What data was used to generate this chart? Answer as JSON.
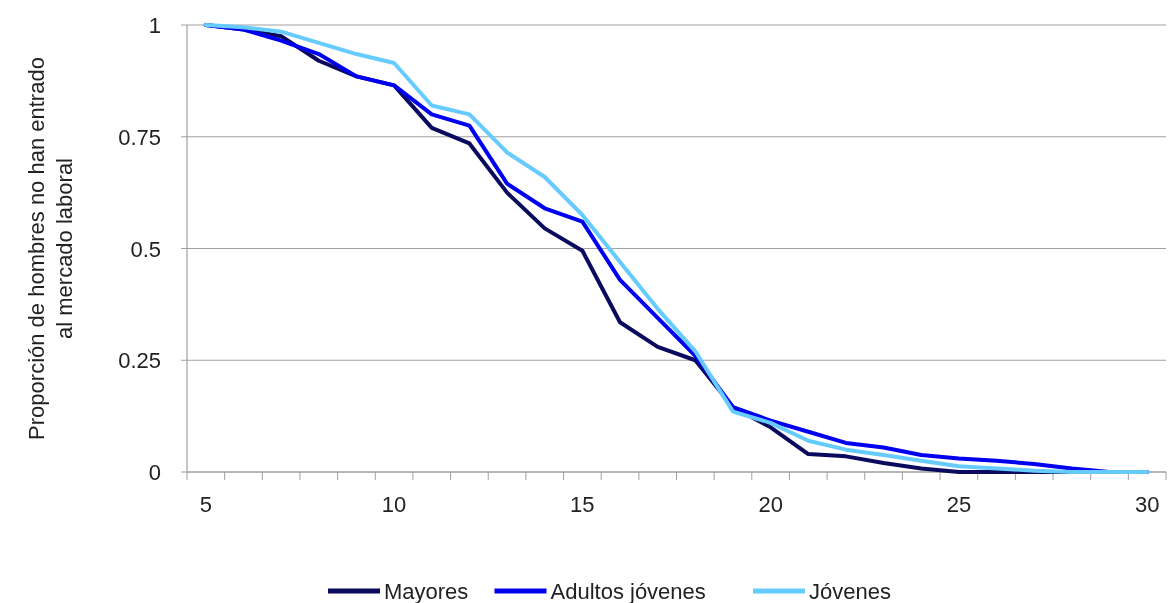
{
  "chart_data": {
    "type": "line",
    "ylabel": "Proporción de hombres no han entrado al mercado laboral",
    "categories": [
      "5",
      null,
      null,
      null,
      null,
      "10",
      null,
      null,
      null,
      null,
      "15",
      null,
      null,
      null,
      null,
      "20",
      null,
      null,
      null,
      null,
      "25",
      null,
      null,
      null,
      null,
      "30"
    ],
    "ylim": [
      0,
      1
    ],
    "yticks": [
      0,
      0.25,
      0.5,
      0.75,
      1
    ],
    "grid": "y",
    "legend": "bottom",
    "marker": "none",
    "line_style": "solid",
    "series": [
      {
        "name": "Mayores",
        "color": "#0a0a5e",
        "values": [
          1,
          0.99,
          0.975,
          0.92,
          0.885,
          0.865,
          0.77,
          0.735,
          0.625,
          0.545,
          0.495,
          0.335,
          0.28,
          0.25,
          0.145,
          0.1,
          0.04,
          0.035,
          0.02,
          0.008,
          0,
          0,
          0,
          0,
          0,
          0
        ]
      },
      {
        "name": "Adultos jóvenes",
        "color": "#0000f0",
        "values": [
          1,
          0.99,
          0.965,
          0.935,
          0.885,
          0.865,
          0.8,
          0.775,
          0.645,
          0.59,
          0.56,
          0.43,
          0.345,
          0.26,
          0.145,
          0.115,
          0.09,
          0.065,
          0.055,
          0.038,
          0.03,
          0.025,
          0.018,
          0.008,
          0,
          0
        ]
      },
      {
        "name": "Jóvenes",
        "color": "#66ccff",
        "values": [
          1,
          0.995,
          0.985,
          0.96,
          0.935,
          0.915,
          0.82,
          0.8,
          0.715,
          0.66,
          0.575,
          0.47,
          0.365,
          0.27,
          0.135,
          0.11,
          0.07,
          0.05,
          0.038,
          0.025,
          0.013,
          0.008,
          0.003,
          0,
          0,
          0
        ]
      }
    ]
  }
}
